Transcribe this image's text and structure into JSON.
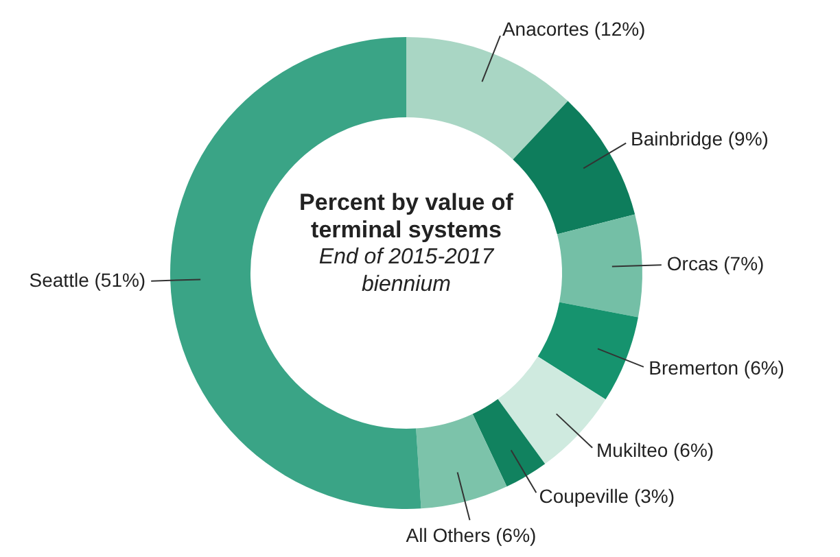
{
  "chart_data": {
    "type": "donut",
    "title": "Percent by value of terminal systems",
    "subtitle": "End of 2015-2017 biennium",
    "categories": [
      "Anacortes",
      "Bainbridge",
      "Orcas",
      "Bremerton",
      "Mukilteo",
      "Coupeville",
      "All Others",
      "Seattle"
    ],
    "values": [
      12,
      9,
      7,
      6,
      6,
      3,
      6,
      51
    ],
    "value_labels": [
      "(12%)",
      "(9%)",
      "(7%)",
      "(6%)",
      "(6%)",
      "(3%)",
      "(6%)",
      "(51%)"
    ],
    "colors": [
      "#a9d6c4",
      "#0e7d5c",
      "#74bfa6",
      "#16936e",
      "#cfeadf",
      "#11825f",
      "#7cc3aa",
      "#3aa486"
    ],
    "legend": false
  }
}
